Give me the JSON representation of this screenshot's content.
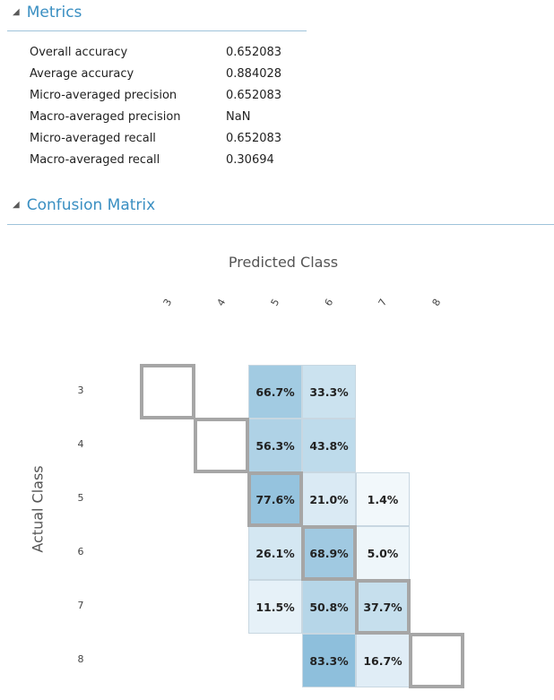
{
  "metrics_section": {
    "title": "Metrics",
    "items": [
      {
        "name": "Overall accuracy",
        "value": "0.652083"
      },
      {
        "name": "Average accuracy",
        "value": "0.884028"
      },
      {
        "name": "Micro-averaged precision",
        "value": "0.652083"
      },
      {
        "name": "Macro-averaged precision",
        "value": "NaN"
      },
      {
        "name": "Micro-averaged recall",
        "value": "0.652083"
      },
      {
        "name": "Macro-averaged recall",
        "value": "0.30694"
      }
    ]
  },
  "confusion_section": {
    "title": "Confusion Matrix",
    "predicted_label": "Predicted Class",
    "actual_label": "Actual Class",
    "classes": [
      "3",
      "4",
      "5",
      "6",
      "7",
      "8"
    ],
    "matrix": [
      [
        "",
        "",
        "66.7%",
        "33.3%",
        "",
        ""
      ],
      [
        "",
        "",
        "56.3%",
        "43.8%",
        "",
        ""
      ],
      [
        "",
        "",
        "77.6%",
        "21.0%",
        "1.4%",
        ""
      ],
      [
        "",
        "",
        "26.1%",
        "68.9%",
        "5.0%",
        ""
      ],
      [
        "",
        "",
        "11.5%",
        "50.8%",
        "37.7%",
        ""
      ],
      [
        "",
        "",
        "",
        "83.3%",
        "16.7%",
        ""
      ]
    ],
    "colors": {
      "high": "#8cbedb",
      "low": "#f4f9fc",
      "diagonal_outline": "#a6a6a6",
      "accent": "#3a8fc2"
    }
  },
  "icons": {
    "collapse": "triangle-collapse-icon"
  }
}
